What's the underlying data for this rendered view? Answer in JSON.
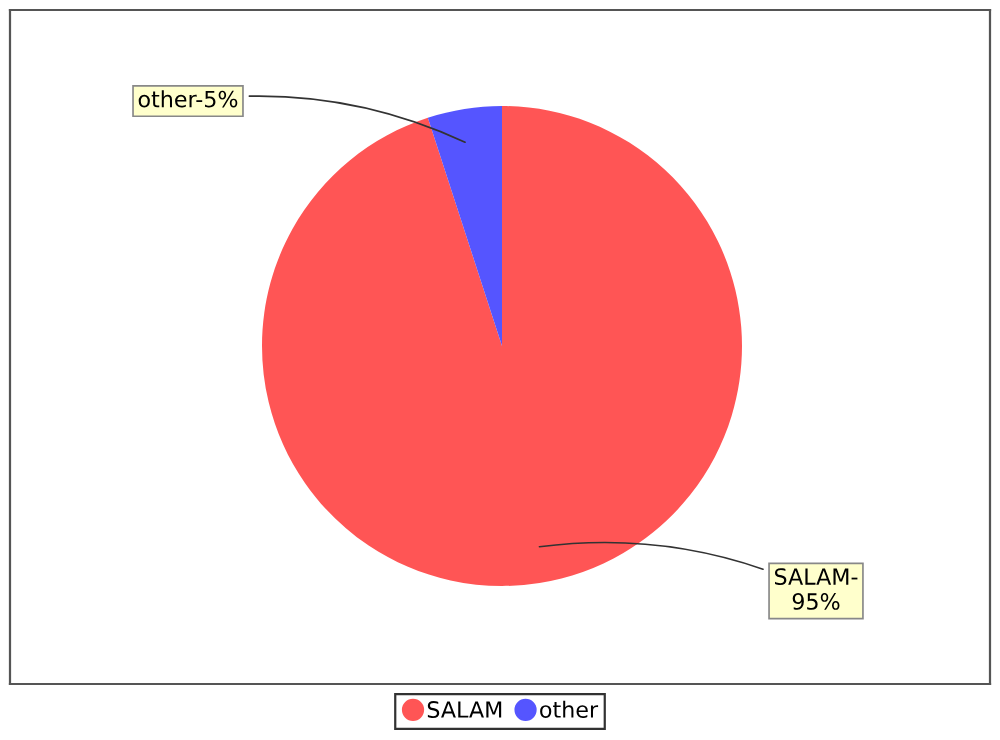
{
  "chart_data": {
    "type": "pie",
    "categories": [
      "SALAM",
      "other"
    ],
    "values": [
      95,
      5
    ],
    "colors": [
      "#ff5555",
      "#5555ff"
    ],
    "value_labels": [
      "SALAM-\n95%",
      "other-5%"
    ],
    "legend": "bottom"
  }
}
